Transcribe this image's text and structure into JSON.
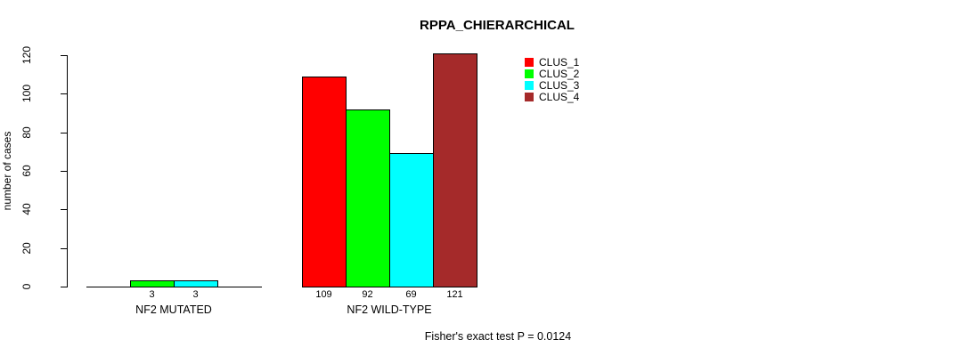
{
  "title": "RPPA_CHIERARCHICAL",
  "annotation": "Fisher's exact test P = 0.0124",
  "colors": {
    "clus_1": "#FF0000",
    "clus_2": "#00FF00",
    "clus_3": "#00FFFF",
    "clus_4": "#A52A2A",
    "axis": "#000000",
    "background": "#FFFFFF"
  },
  "legend": {
    "items": [
      {
        "label": "CLUS_1",
        "color": "#FF0000"
      },
      {
        "label": "CLUS_2",
        "color": "#00FF00"
      },
      {
        "label": "CLUS_3",
        "color": "#00FFFF"
      },
      {
        "label": "CLUS_4",
        "color": "#A52A2A"
      }
    ]
  },
  "chart_data": {
    "type": "bar",
    "title": "RPPA_CHIERARCHICAL",
    "xlabel": "",
    "ylabel": "number of cases",
    "ylim": [
      0,
      120
    ],
    "yticks": [
      0,
      20,
      40,
      60,
      80,
      100,
      120
    ],
    "grid": false,
    "legend_position": "top-right",
    "categories": [
      "NF2 MUTATED",
      "NF2 WILD-TYPE"
    ],
    "series": [
      {
        "name": "CLUS_1",
        "color": "#FF0000",
        "values": [
          0,
          109
        ]
      },
      {
        "name": "CLUS_2",
        "color": "#00FF00",
        "values": [
          3,
          92
        ]
      },
      {
        "name": "CLUS_3",
        "color": "#00FFFF",
        "values": [
          3,
          69
        ]
      },
      {
        "name": "CLUS_4",
        "color": "#A52A2A",
        "values": [
          0,
          121
        ]
      }
    ],
    "bar_labels": [
      [
        "",
        "3",
        "3",
        ""
      ],
      [
        "109",
        "92",
        "69",
        "121"
      ]
    ],
    "annotation": "Fisher's exact test P = 0.0124"
  }
}
